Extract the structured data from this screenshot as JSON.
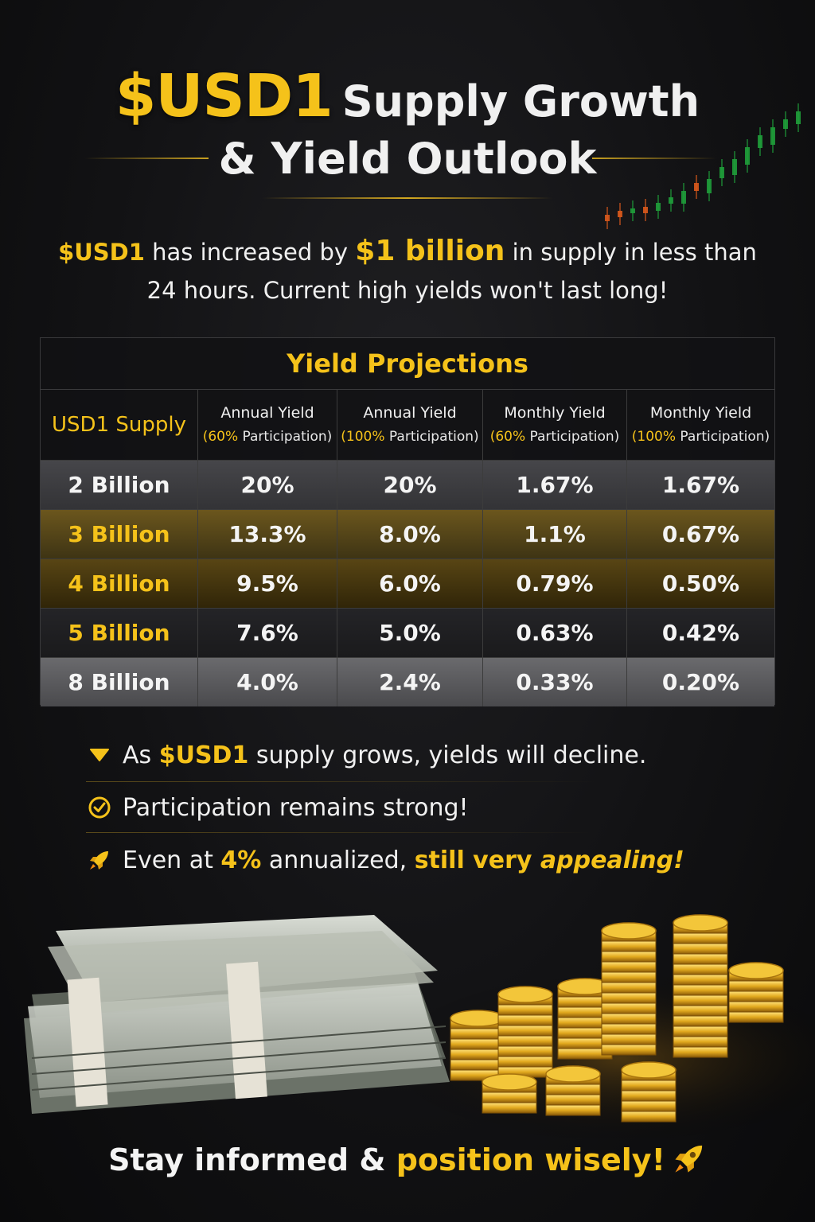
{
  "header": {
    "title_gold": "$USD1",
    "title_rest": "Supply Growth",
    "subtitle": "& Yield Outlook"
  },
  "intro": {
    "brand": "$USD1",
    "part1": " has increased by ",
    "amount": "$1 billion",
    "part2": " in supply in less than",
    "line2": "24 hours. Current high yields won't last long!"
  },
  "table": {
    "title": "Yield Projections",
    "columns": [
      {
        "main": "USD1 Supply",
        "pct": "",
        "sub": ""
      },
      {
        "main": "Annual Yield",
        "pct": "(60%",
        "sub": " Participation)"
      },
      {
        "main": "Annual Yield",
        "pct": "(100%",
        "sub": " Participation)"
      },
      {
        "main": "Monthly Yield",
        "pct": "(60%",
        "sub": " Participation)"
      },
      {
        "main": "Monthly Yield",
        "pct": "(100%",
        "sub": " Participation)"
      }
    ],
    "rows": [
      {
        "supply": "2 Billion",
        "a60": "20%",
        "a100": "20%",
        "m60": "1.67%",
        "m100": "1.67%"
      },
      {
        "supply": "3 Billion",
        "a60": "13.3%",
        "a100": "8.0%",
        "m60": "1.1%",
        "m100": "0.67%"
      },
      {
        "supply": "4 Billion",
        "a60": "9.5%",
        "a100": "6.0%",
        "m60": "0.79%",
        "m100": "0.50%"
      },
      {
        "supply": "5 Billion",
        "a60": "7.6%",
        "a100": "5.0%",
        "m60": "0.63%",
        "m100": "0.42%"
      },
      {
        "supply": "8 Billion",
        "a60": "4.0%",
        "a100": "2.4%",
        "m60": "0.33%",
        "m100": "0.20%"
      }
    ]
  },
  "bullets": [
    {
      "icon": "triangle-down-icon",
      "pre": "As ",
      "bold": "$USD1",
      "post": " supply grows, yields will decline."
    },
    {
      "icon": "check-circle-icon",
      "text": "Participation remains strong!"
    },
    {
      "icon": "rocket-icon",
      "pre": "Even at ",
      "bold": "4%",
      "mid": " annualized, ",
      "bold2": "still very ",
      "italic": "appealing!"
    }
  ],
  "footer": {
    "white": "Stay informed & ",
    "gold": "position wisely!",
    "icon": "rocket-icon"
  },
  "colors": {
    "accent": "#f5c21a",
    "background": "#121214",
    "bull": "#1f9d3a",
    "bear": "#d9591c"
  }
}
